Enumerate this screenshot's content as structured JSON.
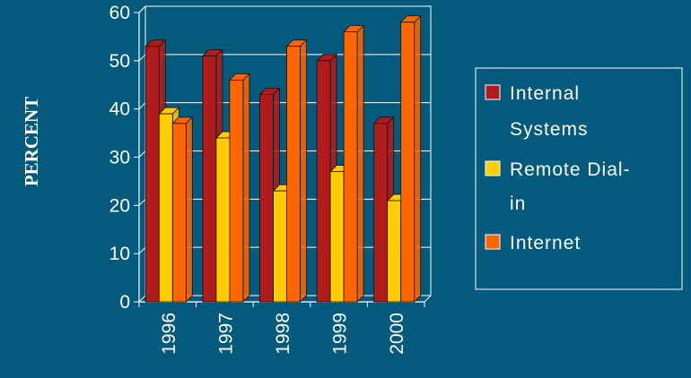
{
  "chart_data": {
    "type": "bar",
    "title": "",
    "ylabel": "PERCENT",
    "xlabel": "",
    "categories": [
      "1996",
      "1997",
      "1998",
      "1999",
      "2000"
    ],
    "ylim": [
      0,
      60
    ],
    "yticks": [
      "0",
      "10",
      "20",
      "30",
      "40",
      "50",
      "60"
    ],
    "grid": true,
    "legend_position": "right",
    "series": [
      {
        "name": "Internal Systems",
        "values": [
          53,
          51,
          43,
          50,
          37
        ],
        "color": "#b01c1c"
      },
      {
        "name": "Remote Dial-in",
        "values": [
          39,
          34,
          23,
          27,
          21
        ],
        "color": "#ffcc00"
      },
      {
        "name": "Internet",
        "values": [
          37,
          46,
          53,
          56,
          58
        ],
        "color": "#ff6600"
      }
    ]
  },
  "legend": {
    "items": [
      {
        "lines": [
          "Internal",
          "Systems"
        ]
      },
      {
        "lines": [
          "Remote Dial-",
          "in"
        ]
      },
      {
        "lines": [
          "Internet"
        ]
      }
    ]
  },
  "colors": {
    "background": "#035a7c",
    "text": "#ffffff",
    "grid": "#ffffff"
  }
}
